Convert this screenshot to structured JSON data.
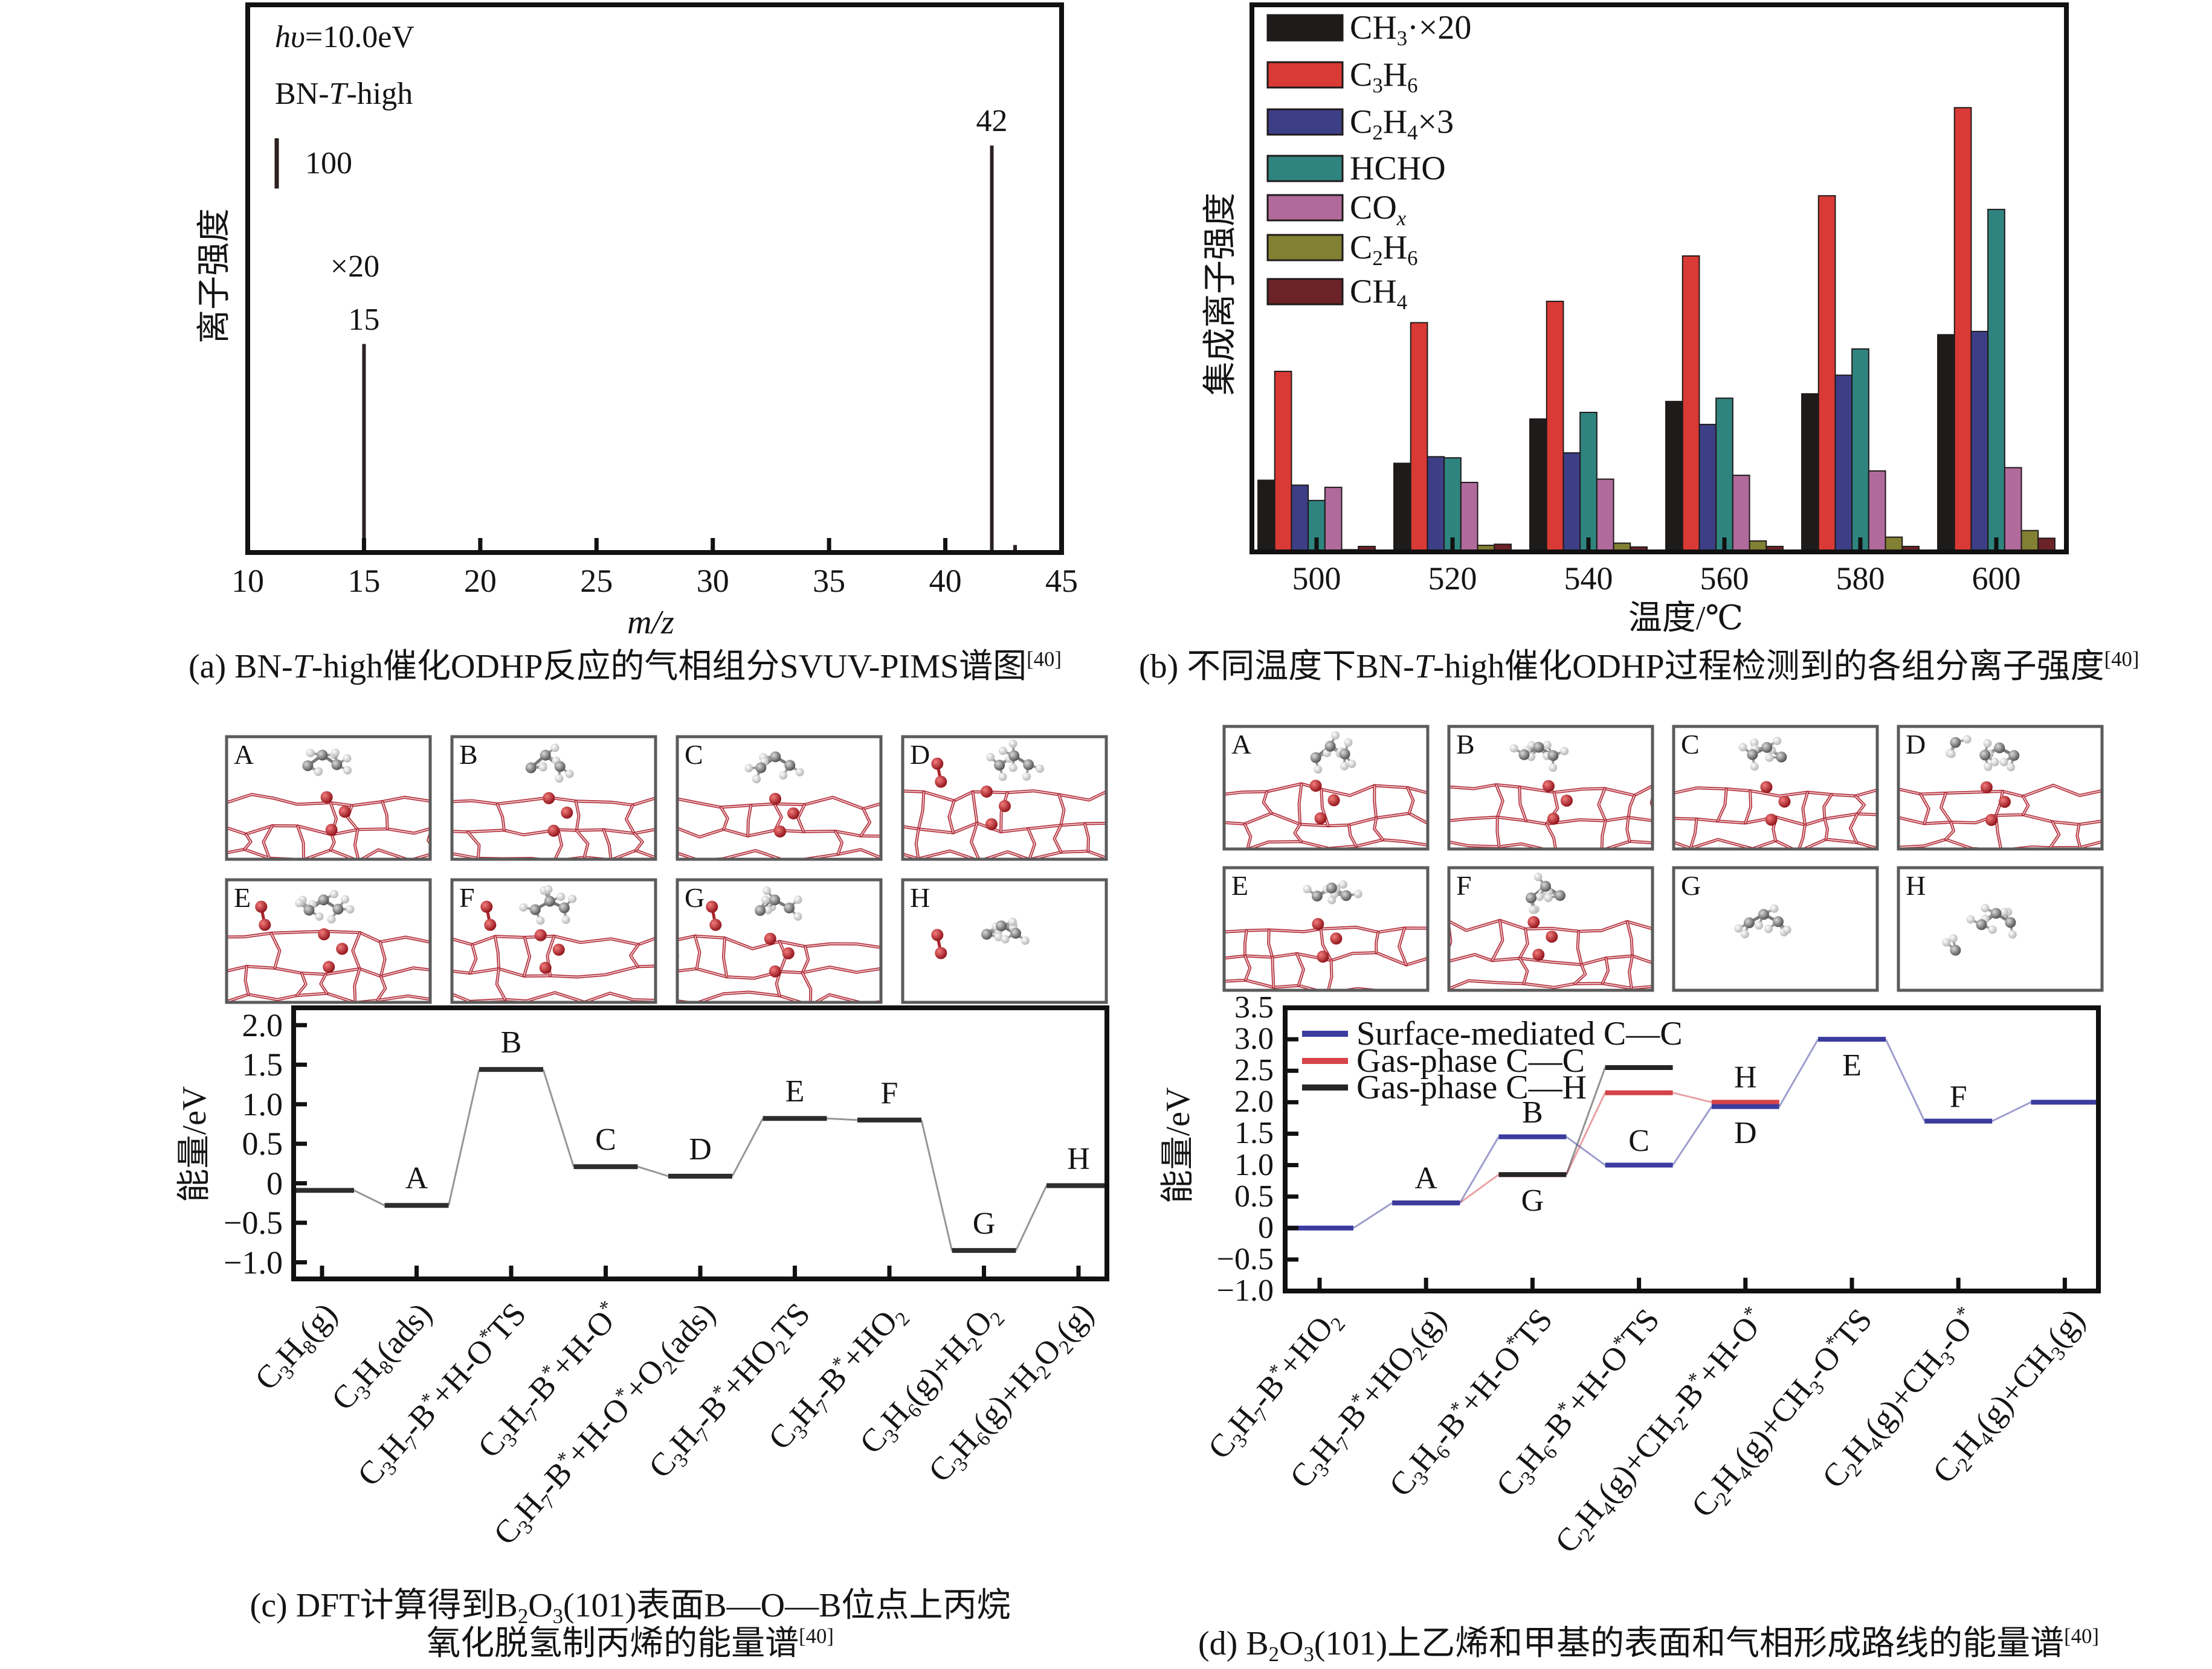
{
  "figure": {
    "structures": {
      "c": [
        {
          "label": "A",
          "surface": true,
          "o_species": false,
          "molecules": 1
        },
        {
          "label": "B",
          "surface": true,
          "o_species": false,
          "molecules": 1
        },
        {
          "label": "C",
          "surface": true,
          "o_species": false,
          "molecules": 1
        },
        {
          "label": "D",
          "surface": true,
          "o_species": true,
          "molecules": 1
        },
        {
          "label": "E",
          "surface": true,
          "o_species": true,
          "molecules": 1
        },
        {
          "label": "F",
          "surface": true,
          "o_species": true,
          "molecules": 1
        },
        {
          "label": "G",
          "surface": true,
          "o_species": true,
          "molecules": 1
        },
        {
          "label": "H",
          "surface": false,
          "o_species": true,
          "molecules": 1
        }
      ],
      "d": [
        {
          "label": "A",
          "surface": true,
          "o_species": false,
          "molecules": 1
        },
        {
          "label": "B",
          "surface": true,
          "o_species": false,
          "molecules": 1
        },
        {
          "label": "C",
          "surface": true,
          "o_species": false,
          "molecules": 1
        },
        {
          "label": "D",
          "surface": true,
          "o_species": false,
          "molecules": 2
        },
        {
          "label": "E",
          "surface": true,
          "o_species": false,
          "molecules": 1
        },
        {
          "label": "F",
          "surface": true,
          "o_species": false,
          "molecules": 1
        },
        {
          "label": "G",
          "surface": false,
          "o_species": false,
          "molecules": 1
        },
        {
          "label": "H",
          "surface": false,
          "o_species": false,
          "molecules": 2
        }
      ]
    }
  },
  "chart_data": [
    {
      "panel": "a",
      "type": "bar",
      "subtype": "stick-spectrum",
      "title": "",
      "xlabel": "!{m/z}",
      "ylabel": "离子强度",
      "xlim": [
        10,
        45
      ],
      "xticks": [
        10,
        15,
        20,
        25,
        30,
        35,
        40,
        45
      ],
      "ylim": [
        0,
        1090
      ],
      "grid": false,
      "color": "#2b2222",
      "x": [
        15,
        42,
        43
      ],
      "values": [
        415,
        810,
        15
      ],
      "peak_labels": [
        {
          "x": 15,
          "text": "15",
          "factor": "×20"
        },
        {
          "x": 42,
          "text": "42"
        }
      ],
      "annotations": [
        "!{hυ}=10.0eV",
        "BN-!{T}-high"
      ],
      "scale_bar": {
        "value": 100,
        "text": "100"
      },
      "caption": "(a) BN-!{T}-high催化ODHP反应的气相组分SVUV-PIMS谱图^{[40]}"
    },
    {
      "panel": "b",
      "type": "bar",
      "title": "",
      "xlabel": "温度/℃",
      "ylabel": "集成离子强度",
      "categories": [
        "500",
        "520",
        "540",
        "560",
        "580",
        "600"
      ],
      "ylim": [
        0,
        100
      ],
      "grid": false,
      "legend": "top-left",
      "series": [
        {
          "name": "CH_{3}·×20",
          "color": "#1e1b1b",
          "values": [
            13.1,
            16.2,
            24.3,
            27.5,
            28.9,
            39.7
          ]
        },
        {
          "name": "C_{3}H_{6}",
          "color": "#d93a35",
          "values": [
            33.0,
            41.9,
            45.8,
            54.1,
            65.1,
            81.2
          ]
        },
        {
          "name": "C_{2}H_{4}×3",
          "color": "#3c3f86",
          "values": [
            12.2,
            17.4,
            18.1,
            23.3,
            32.3,
            40.3
          ]
        },
        {
          "name": "HCHO",
          "color": "#2f8480",
          "values": [
            9.4,
            17.2,
            25.5,
            28.1,
            37.1,
            62.6
          ]
        },
        {
          "name": "CO_{!{x}}",
          "color": "#b06b9c",
          "values": [
            11.8,
            12.7,
            13.3,
            14.0,
            14.8,
            15.4
          ]
        },
        {
          "name": "C_{2}H_{6}",
          "color": "#828033",
          "values": [
            0.4,
            1.2,
            1.6,
            2.0,
            2.7,
            3.9
          ]
        },
        {
          "name": "CH_{4}",
          "color": "#6b2327",
          "values": [
            1.0,
            1.4,
            0.9,
            1.0,
            1.0,
            2.5
          ]
        }
      ],
      "caption": "(b) 不同温度下BN-!{T}-high催化ODHP过程检测到的各组分离子强度^{[40]}"
    },
    {
      "panel": "c",
      "type": "line",
      "subtype": "energy-profile",
      "title": "",
      "ylabel": "能量/eV",
      "xlabel": "",
      "ylim": [
        -1.21,
        2.22
      ],
      "yticks": [
        -1.0,
        -0.5,
        0,
        0.5,
        1.0,
        1.5,
        2.0
      ],
      "ytick_labels": [
        "−1.0",
        "−0.5",
        "0",
        "0.5",
        "1.0",
        "1.5",
        "2.0"
      ],
      "grid": false,
      "x": [
        "C_{3}H_{8}(g)",
        "C_{3}H_{8}(ads)",
        "C_{3}H_{7}-B^{*}+H-O^{*}TS",
        "C_{3}H_{7}-B^{*}+H-O^{*}",
        "C_{3}H_{7}-B^{*}+H-O^{*}+O_{2}(ads)",
        "C_{3}H_{7}-B^{*}+HO_{2}TS",
        "C_{3}H_{7}-B^{*}+HO_{2}",
        "C_{3}H_{6}(g)+H_{2}O_{2}",
        "C_{3}H_{6}(g)+H_{2}O_{2}(g)"
      ],
      "series": [
        {
          "name": "energy",
          "color": "#2d2d2d",
          "values": [
            -0.09,
            -0.28,
            1.44,
            0.21,
            0.09,
            0.82,
            0.8,
            -0.85,
            -0.03
          ]
        }
      ],
      "level_labels": [
        {
          "text": "A",
          "index": 1,
          "position": "above"
        },
        {
          "text": "B",
          "index": 2,
          "position": "above"
        },
        {
          "text": "C",
          "index": 3,
          "position": "above"
        },
        {
          "text": "D",
          "index": 4,
          "position": "above"
        },
        {
          "text": "E",
          "index": 5,
          "position": "above"
        },
        {
          "text": "F",
          "index": 6,
          "position": "above"
        },
        {
          "text": "G",
          "index": 7,
          "position": "above"
        },
        {
          "text": "H",
          "index": 8,
          "position": "above"
        }
      ],
      "caption_lines": [
        "(c) DFT计算得到B_{2}O_{3}(101)表面B—O—B位点上丙烷",
        "氧化脱氢制丙烯的能量谱^{[40]}"
      ]
    },
    {
      "panel": "d",
      "type": "line",
      "subtype": "energy-profile",
      "title": "",
      "ylabel": "能量/eV",
      "xlabel": "",
      "ylim": [
        -1.0,
        3.5
      ],
      "yticks": [
        -1.0,
        -0.5,
        0,
        0.5,
        1.0,
        1.5,
        2.0,
        2.5,
        3.0,
        3.5
      ],
      "ytick_labels": [
        "−1.0",
        "−0.5",
        "0",
        "0.5",
        "1.0",
        "1.5",
        "2.0",
        "2.5",
        "3.0",
        "3.5"
      ],
      "grid": false,
      "legend": "top-left",
      "x": [
        "C_{3}H_{7}-B^{*}+HO_{2}",
        "C_{3}H_{7}-B^{*}+HO_{2}(g)",
        "C_{3}H_{6}-B^{*}+H-O^{*}TS",
        "C_{3}H_{6}-B^{*}+H-O^{*}TS",
        "C_{2}H_{4}(g)+CH_{2}-B^{*}+H-O^{*}",
        "C_{2}H_{4}(g)+CH_{3}-O^{*}TS",
        "C_{2}H_{4}(g)+CH_{3}-O^{*}",
        "C_{2}H_{4}(g)+CH_{3}(g)"
      ],
      "series": [
        {
          "name": "Surface-mediated C—C",
          "color": "#3b3c9e",
          "values": [
            0.0,
            0.4,
            1.45,
            1.0,
            1.93,
            3.0,
            1.7,
            2.0
          ]
        },
        {
          "name": "Gas-phase C—C",
          "color": "#d6434a",
          "values": [
            null,
            0.4,
            0.85,
            2.15,
            2.0,
            null,
            null,
            null
          ]
        },
        {
          "name": "Gas-phase C—H",
          "color": "#252525",
          "values": [
            null,
            null,
            0.85,
            2.55,
            null,
            null,
            null,
            null
          ]
        }
      ],
      "level_labels": [
        {
          "text": "A",
          "series": 0,
          "index": 1,
          "position": "above"
        },
        {
          "text": "B",
          "series": 0,
          "index": 2,
          "position": "above"
        },
        {
          "text": "G",
          "series": 2,
          "index": 2,
          "position": "below"
        },
        {
          "text": "C",
          "series": 0,
          "index": 3,
          "position": "above"
        },
        {
          "text": "H",
          "series": 1,
          "index": 4,
          "position": "above"
        },
        {
          "text": "D",
          "series": 0,
          "index": 4,
          "position": "below"
        },
        {
          "text": "E",
          "series": 0,
          "index": 5,
          "position": "below"
        },
        {
          "text": "F",
          "series": 0,
          "index": 6,
          "position": "above"
        }
      ],
      "caption": "(d) B_{2}O_{3}(101)上乙烯和甲基的表面和气相形成路线的能量谱^{[40]}"
    }
  ]
}
